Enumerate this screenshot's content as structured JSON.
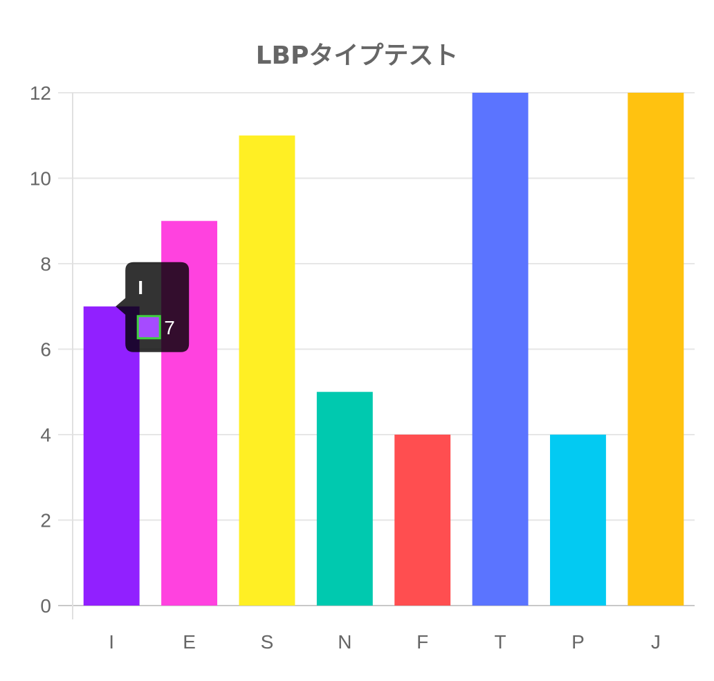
{
  "chart_data": {
    "type": "bar",
    "title": "LBPタイプテスト",
    "categories": [
      "I",
      "E",
      "S",
      "N",
      "F",
      "T",
      "P",
      "J"
    ],
    "values": [
      7,
      9,
      11,
      5,
      4,
      12,
      4,
      12
    ],
    "colors": [
      "#9120FF",
      "#FF42DF",
      "#FFEF24",
      "#00C9AF",
      "#FF4E50",
      "#5B74FF",
      "#03CAF2",
      "#FFC210"
    ],
    "ylim": [
      0,
      12
    ],
    "yticks": [
      "0",
      "2",
      "4",
      "6",
      "8",
      "10",
      "12"
    ],
    "grid": true,
    "legend": false
  },
  "tooltip": {
    "title": "I",
    "value": "7",
    "swatch_color": "#A64BFF",
    "swatch_border": "#3ED13E"
  }
}
